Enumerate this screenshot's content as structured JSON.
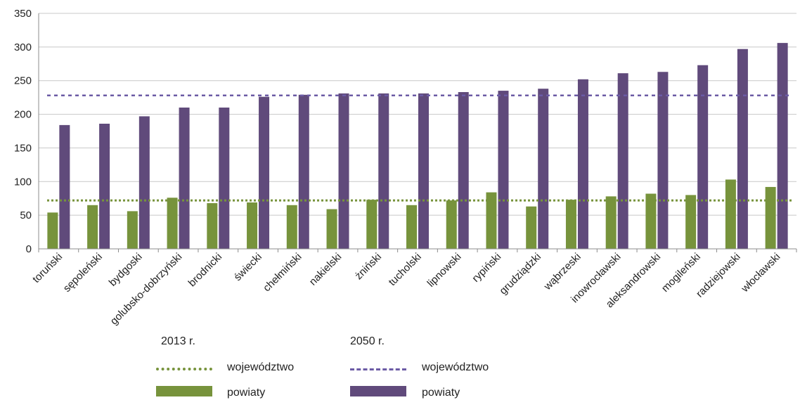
{
  "chart_data": {
    "type": "bar",
    "categories": [
      "toruński",
      "sępoleński",
      "bydgoski",
      "golubsko-dobrzyński",
      "brodnicki",
      "świecki",
      "chełmiński",
      "nakielski",
      "żniński",
      "tucholski",
      "lipnowski",
      "rypiński",
      "grudziądzki",
      "wąbrzeski",
      "inowrocławski",
      "aleksandrowski",
      "mogileński",
      "radziejowski",
      "włocławski"
    ],
    "series": [
      {
        "name": "powiaty",
        "group": "2013 r.",
        "color": "#77933c",
        "values": [
          54,
          65,
          56,
          76,
          68,
          69,
          65,
          59,
          73,
          65,
          72,
          84,
          63,
          73,
          78,
          82,
          80,
          103,
          92
        ]
      },
      {
        "name": "powiaty",
        "group": "2050 r.",
        "color": "#604a7b",
        "values": [
          184,
          186,
          197,
          210,
          210,
          226,
          229,
          231,
          231,
          231,
          233,
          235,
          238,
          252,
          261,
          263,
          273,
          297,
          306
        ]
      }
    ],
    "reference_lines": [
      {
        "name": "województwo",
        "group": "2013 r.",
        "value": 72,
        "color": "#77933c",
        "style": "dotted"
      },
      {
        "name": "województwo",
        "group": "2050 r.",
        "value": 228,
        "color": "#6b5ba5",
        "style": "dashed"
      }
    ],
    "ylim": [
      0,
      350
    ],
    "yticks": [
      0,
      50,
      100,
      150,
      200,
      250,
      300,
      350
    ],
    "grid": true,
    "legend_placement": "bottom"
  },
  "legend": {
    "group1_title": "2013 r.",
    "group2_title": "2050 r.",
    "group1_line_label": "województwo",
    "group1_bar_label": "powiaty",
    "group2_line_label": "województwo",
    "group2_bar_label": "powiaty"
  }
}
